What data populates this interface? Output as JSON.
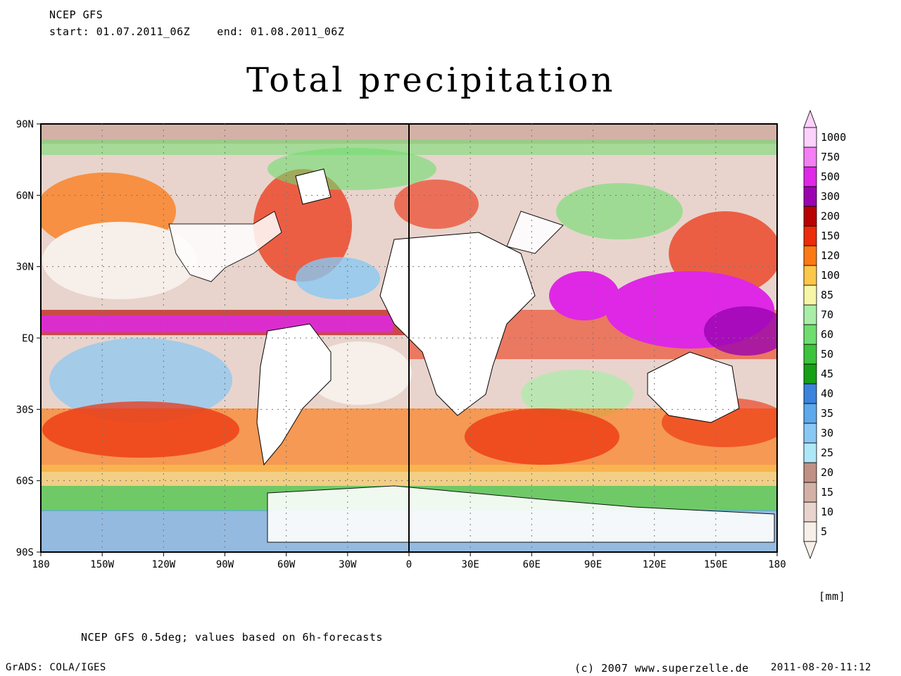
{
  "header": {
    "model": "NCEP GFS",
    "period": "start: 01.07.2011_06Z    end: 01.08.2011_06Z"
  },
  "title": "Total precipitation",
  "map": {
    "lat_labels": [
      "90N",
      "60N",
      "30N",
      "EQ",
      "30S",
      "60S",
      "90S"
    ],
    "lon_labels": [
      "180",
      "150W",
      "120W",
      "90W",
      "60W",
      "30W",
      "0",
      "30E",
      "60E",
      "90E",
      "120E",
      "150E",
      "180"
    ]
  },
  "legend": {
    "unit": "[mm]",
    "levels": [
      "5",
      "10",
      "15",
      "20",
      "25",
      "30",
      "35",
      "40",
      "45",
      "50",
      "60",
      "70",
      "85",
      "100",
      "120",
      "150",
      "200",
      "300",
      "500",
      "750",
      "1000"
    ],
    "colors": [
      "#f7efe9",
      "#e8d4cc",
      "#d4b1a6",
      "#c09084",
      "#aee8f8",
      "#88c8f4",
      "#5ea8ec",
      "#3a84dc",
      "#16a016",
      "#3cc43c",
      "#6ede6e",
      "#a8eea8",
      "#f6f6a6",
      "#fcc84a",
      "#fc7a14",
      "#ec2c0a",
      "#b80202",
      "#9a04b0",
      "#de28e6",
      "#f47ef4",
      "#fcd2fc"
    ]
  },
  "footer": {
    "source_note": "NCEP GFS 0.5deg; values based on 6h-forecasts",
    "software": "GrADS: COLA/IGES",
    "copyright": "(c) 2007 www.superzelle.de",
    "timestamp": "2011-08-20-11:12"
  }
}
